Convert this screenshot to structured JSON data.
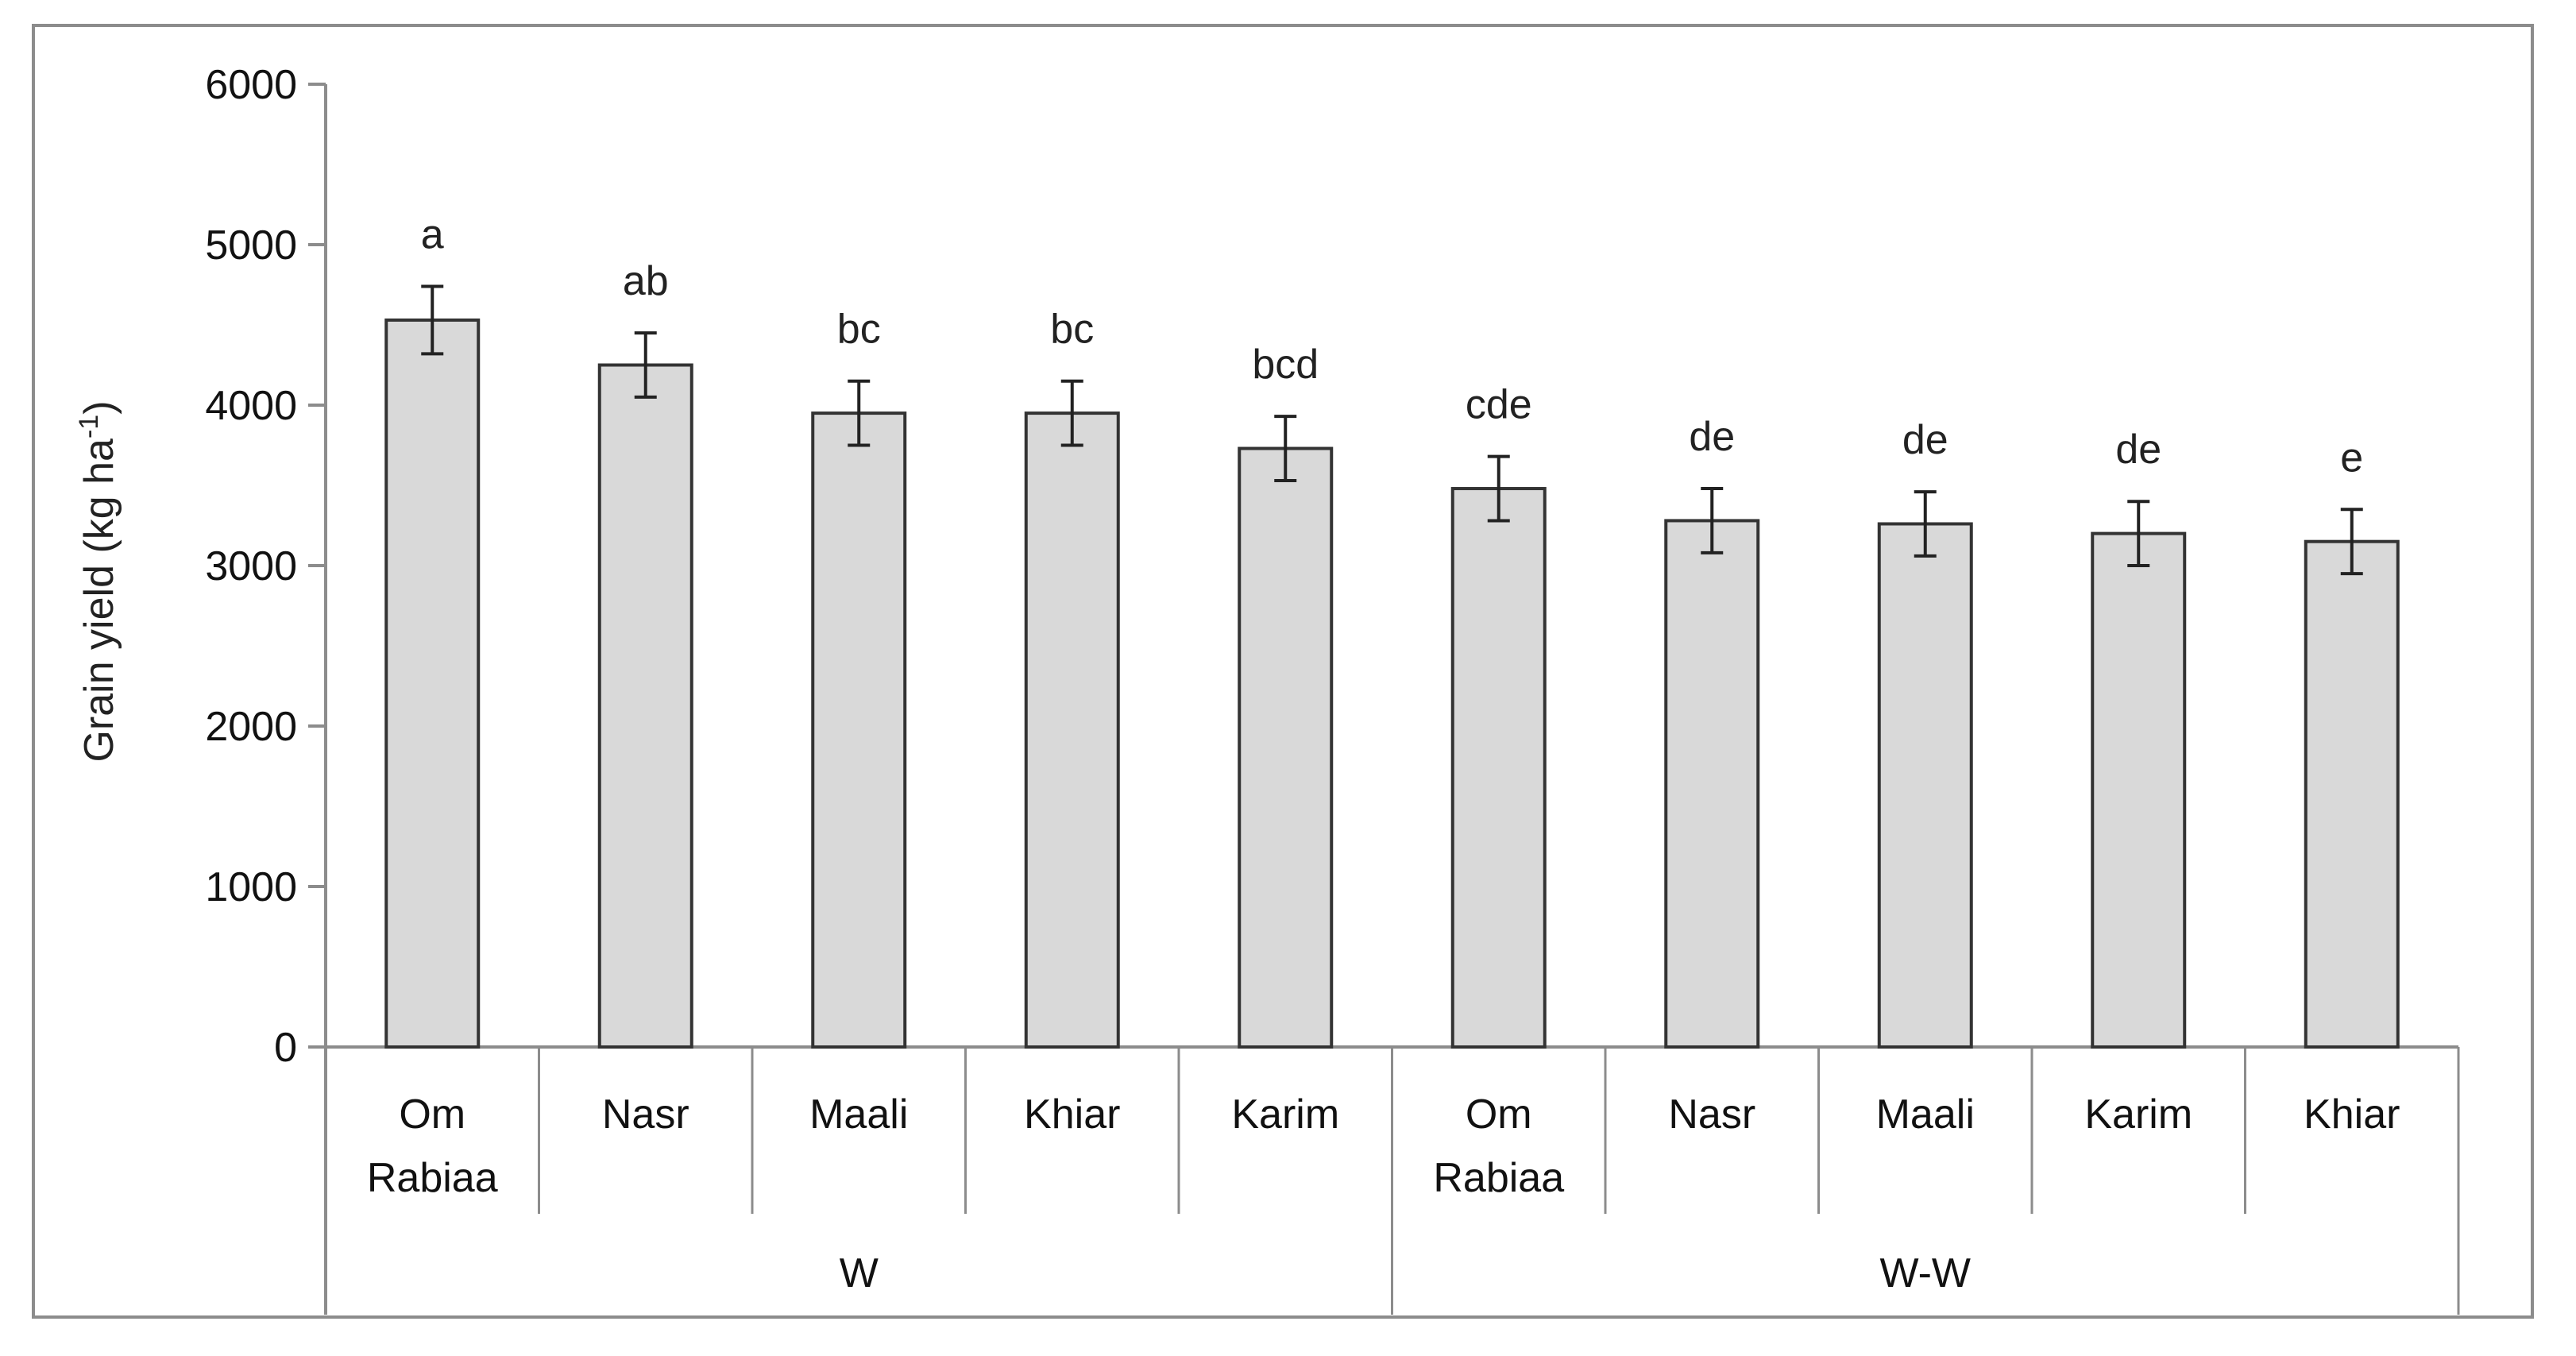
{
  "chart_data": {
    "type": "bar",
    "title": "",
    "ylabel": "Grain yield (kg ha",
    "ylabel_sup": "-1",
    "ylabel_close": ")",
    "ylim": [
      0,
      6000
    ],
    "yticks": [
      0,
      1000,
      2000,
      3000,
      4000,
      5000,
      6000
    ],
    "grid": false,
    "bar_color": "#d9d9d9",
    "bar_stroke": "#333333",
    "bars": [
      {
        "label": [
          "Om",
          "Rabiaa"
        ],
        "group": 0,
        "value": 4530,
        "error": 210,
        "sig": "a"
      },
      {
        "label": [
          "Nasr"
        ],
        "group": 0,
        "value": 4250,
        "error": 200,
        "sig": "ab"
      },
      {
        "label": [
          "Maali"
        ],
        "group": 0,
        "value": 3950,
        "error": 200,
        "sig": "bc"
      },
      {
        "label": [
          "Khiar"
        ],
        "group": 0,
        "value": 3950,
        "error": 200,
        "sig": "bc"
      },
      {
        "label": [
          "Karim"
        ],
        "group": 0,
        "value": 3730,
        "error": 200,
        "sig": "bcd"
      },
      {
        "label": [
          "Om",
          "Rabiaa"
        ],
        "group": 1,
        "value": 3480,
        "error": 200,
        "sig": "cde"
      },
      {
        "label": [
          "Nasr"
        ],
        "group": 1,
        "value": 3280,
        "error": 200,
        "sig": "de"
      },
      {
        "label": [
          "Maali"
        ],
        "group": 1,
        "value": 3260,
        "error": 200,
        "sig": "de"
      },
      {
        "label": [
          "Karim"
        ],
        "group": 1,
        "value": 3200,
        "error": 200,
        "sig": "de"
      },
      {
        "label": [
          "Khiar"
        ],
        "group": 1,
        "value": 3150,
        "error": 200,
        "sig": "e"
      }
    ],
    "groups": [
      "W",
      "W-W"
    ]
  }
}
